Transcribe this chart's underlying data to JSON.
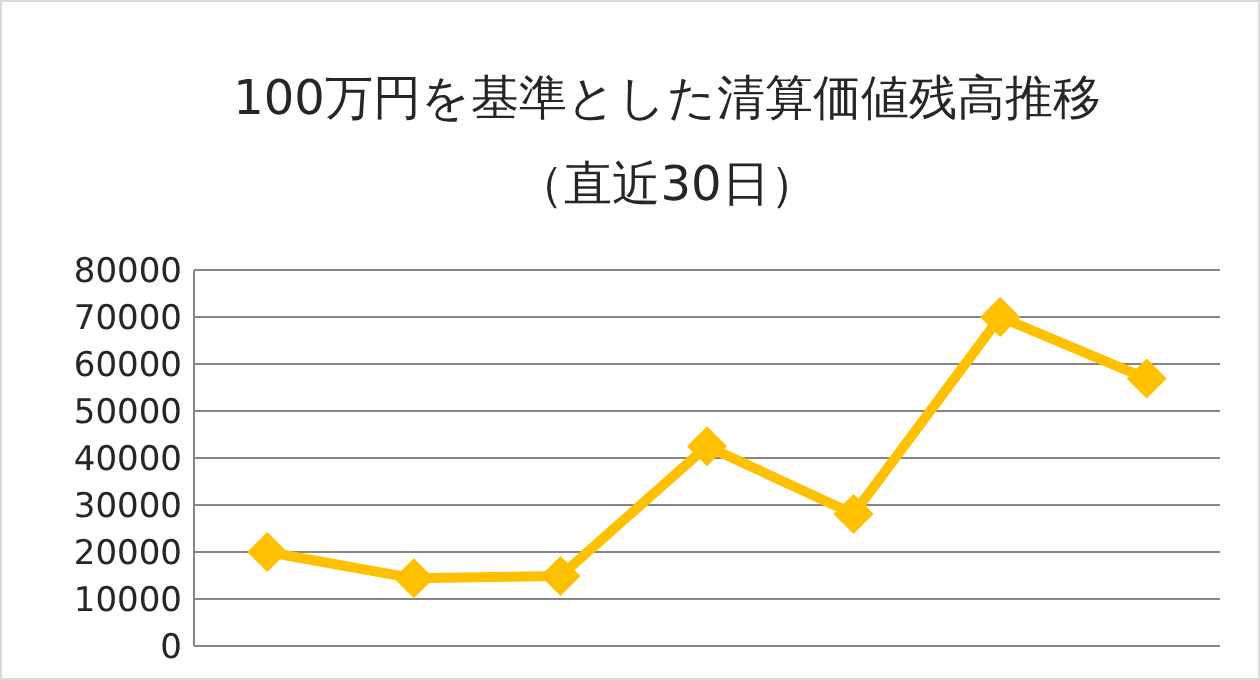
{
  "chart_data": {
    "type": "line",
    "title": "100万円を基準とした清算価値残高推移",
    "subtitle": "（直近30日）",
    "categories": [
      null,
      null,
      null,
      null,
      null,
      null,
      null
    ],
    "series": [
      {
        "color": "#ffc000",
        "values": [
          20000,
          14400,
          14900,
          42500,
          28100,
          70000,
          56900
        ]
      }
    ],
    "ylim": [
      0,
      80000
    ],
    "yticks": [
      0,
      10000,
      20000,
      30000,
      40000,
      50000,
      60000,
      70000,
      80000
    ],
    "grid": "y",
    "marker": "diamond",
    "line_style": "solid"
  }
}
